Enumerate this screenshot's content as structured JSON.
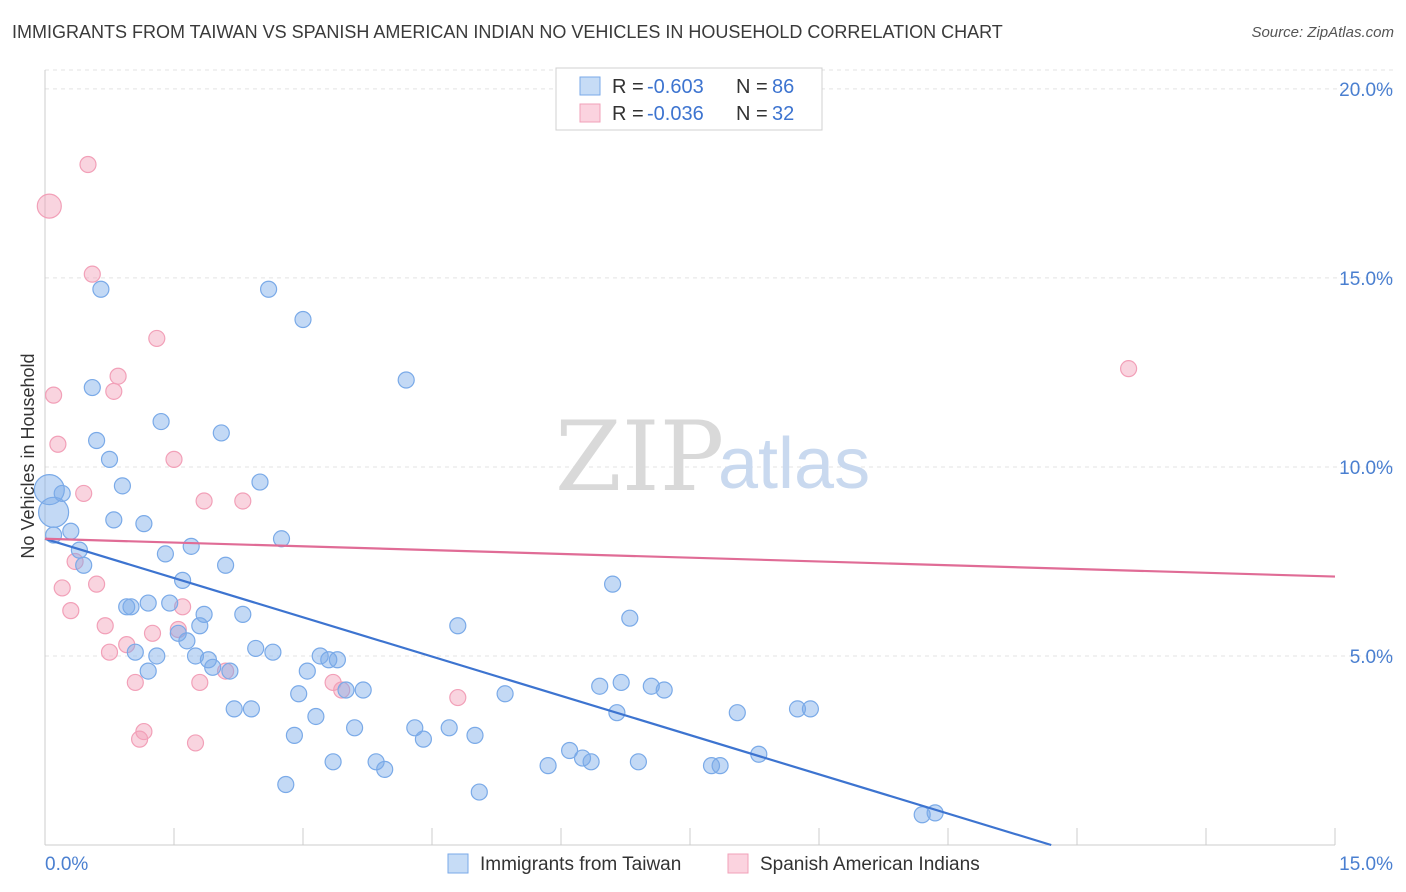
{
  "title": "IMMIGRANTS FROM TAIWAN VS SPANISH AMERICAN INDIAN NO VEHICLES IN HOUSEHOLD CORRELATION CHART",
  "source": "Source: ZipAtlas.com",
  "watermark": {
    "zip": "ZIP",
    "atlas": "atlas"
  },
  "legend": {
    "rows": [
      {
        "r_label": "R =",
        "r_value": "-0.603",
        "n_label": "N =",
        "n_value": "86"
      },
      {
        "r_label": "R =",
        "r_value": "-0.036",
        "n_label": "N =",
        "n_value": "32"
      }
    ]
  },
  "bottom_legend": [
    "Immigrants from Taiwan",
    "Spanish American Indians"
  ],
  "chart_data": {
    "type": "scatter",
    "ylabel": "No Vehicles in Household",
    "xlim": [
      0,
      15
    ],
    "ylim": [
      0,
      20.5
    ],
    "x_tick_labels": [
      "0.0%",
      "15.0%"
    ],
    "y_ticks": [
      5,
      10,
      15,
      20
    ],
    "y_tick_labels": [
      "5.0%",
      "10.0%",
      "15.0%",
      "20.0%"
    ],
    "grid": true,
    "colors": {
      "taiwan": "#7aaae8",
      "spanish": "#f2a0b8",
      "taiwan_line": "#3d74d0",
      "spanish_line": "#e06c96"
    },
    "series": [
      {
        "name": "Immigrants from Taiwan",
        "trend": {
          "x": [
            0,
            11.7
          ],
          "y": [
            8.1,
            0
          ]
        },
        "points": [
          [
            0.05,
            9.4
          ],
          [
            0.1,
            8.8
          ],
          [
            0.1,
            8.2
          ],
          [
            0.2,
            9.3
          ],
          [
            0.3,
            8.3
          ],
          [
            0.4,
            7.8
          ],
          [
            0.45,
            7.4
          ],
          [
            0.55,
            12.1
          ],
          [
            0.6,
            10.7
          ],
          [
            0.65,
            14.7
          ],
          [
            0.75,
            10.2
          ],
          [
            0.8,
            8.6
          ],
          [
            0.9,
            9.5
          ],
          [
            0.95,
            6.3
          ],
          [
            1.0,
            6.3
          ],
          [
            1.05,
            5.1
          ],
          [
            1.15,
            8.5
          ],
          [
            1.2,
            6.4
          ],
          [
            1.2,
            4.6
          ],
          [
            1.3,
            5.0
          ],
          [
            1.35,
            11.2
          ],
          [
            1.4,
            7.7
          ],
          [
            1.45,
            6.4
          ],
          [
            1.55,
            5.6
          ],
          [
            1.6,
            7.0
          ],
          [
            1.65,
            5.4
          ],
          [
            1.7,
            7.9
          ],
          [
            1.75,
            5.0
          ],
          [
            1.8,
            5.8
          ],
          [
            1.85,
            6.1
          ],
          [
            1.9,
            4.9
          ],
          [
            1.95,
            4.7
          ],
          [
            2.05,
            10.9
          ],
          [
            2.1,
            7.4
          ],
          [
            2.15,
            4.6
          ],
          [
            2.2,
            3.6
          ],
          [
            2.3,
            6.1
          ],
          [
            2.4,
            3.6
          ],
          [
            2.45,
            5.2
          ],
          [
            2.5,
            9.6
          ],
          [
            2.6,
            14.7
          ],
          [
            2.65,
            5.1
          ],
          [
            2.75,
            8.1
          ],
          [
            2.8,
            1.6
          ],
          [
            2.9,
            2.9
          ],
          [
            2.95,
            4.0
          ],
          [
            3.0,
            13.9
          ],
          [
            3.05,
            4.6
          ],
          [
            3.15,
            3.4
          ],
          [
            3.2,
            5.0
          ],
          [
            3.3,
            4.9
          ],
          [
            3.35,
            2.2
          ],
          [
            3.4,
            4.9
          ],
          [
            3.5,
            4.1
          ],
          [
            3.6,
            3.1
          ],
          [
            3.7,
            4.1
          ],
          [
            3.85,
            2.2
          ],
          [
            3.95,
            2.0
          ],
          [
            4.2,
            12.3
          ],
          [
            4.3,
            3.1
          ],
          [
            4.4,
            2.8
          ],
          [
            4.7,
            3.1
          ],
          [
            4.8,
            5.8
          ],
          [
            5.0,
            2.9
          ],
          [
            5.05,
            1.4
          ],
          [
            5.35,
            4.0
          ],
          [
            5.85,
            2.1
          ],
          [
            6.1,
            2.5
          ],
          [
            6.25,
            2.3
          ],
          [
            6.35,
            2.2
          ],
          [
            6.45,
            4.2
          ],
          [
            6.6,
            6.9
          ],
          [
            6.65,
            3.5
          ],
          [
            6.7,
            4.3
          ],
          [
            6.8,
            6.0
          ],
          [
            6.9,
            2.2
          ],
          [
            7.05,
            4.2
          ],
          [
            7.2,
            4.1
          ],
          [
            7.75,
            2.1
          ],
          [
            7.85,
            2.1
          ],
          [
            8.05,
            3.5
          ],
          [
            8.3,
            2.4
          ],
          [
            8.75,
            3.6
          ],
          [
            8.9,
            3.6
          ],
          [
            10.2,
            0.8
          ],
          [
            10.35,
            0.85
          ]
        ]
      },
      {
        "name": "Spanish American Indians",
        "trend": {
          "x": [
            0,
            15
          ],
          "y": [
            8.1,
            7.1
          ]
        },
        "points": [
          [
            0.05,
            16.9
          ],
          [
            0.1,
            11.9
          ],
          [
            0.15,
            10.6
          ],
          [
            0.2,
            6.8
          ],
          [
            0.3,
            6.2
          ],
          [
            0.35,
            7.5
          ],
          [
            0.45,
            9.3
          ],
          [
            0.5,
            18.0
          ],
          [
            0.55,
            15.1
          ],
          [
            0.6,
            6.9
          ],
          [
            0.7,
            5.8
          ],
          [
            0.75,
            5.1
          ],
          [
            0.8,
            12.0
          ],
          [
            0.85,
            12.4
          ],
          [
            0.95,
            5.3
          ],
          [
            1.05,
            4.3
          ],
          [
            1.1,
            2.8
          ],
          [
            1.15,
            3.0
          ],
          [
            1.25,
            5.6
          ],
          [
            1.3,
            13.4
          ],
          [
            1.5,
            10.2
          ],
          [
            1.55,
            5.7
          ],
          [
            1.6,
            6.3
          ],
          [
            1.75,
            2.7
          ],
          [
            1.8,
            4.3
          ],
          [
            1.85,
            9.1
          ],
          [
            2.1,
            4.6
          ],
          [
            2.3,
            9.1
          ],
          [
            3.35,
            4.3
          ],
          [
            3.45,
            4.1
          ],
          [
            4.8,
            3.9
          ],
          [
            12.6,
            12.6
          ]
        ]
      }
    ]
  }
}
